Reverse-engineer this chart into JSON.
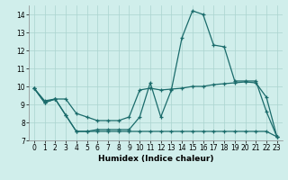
{
  "xlabel": "Humidex (Indice chaleur)",
  "background_color": "#d0eeeb",
  "grid_color": "#aad4cf",
  "line_color": "#1a6b6b",
  "x_values": [
    0,
    1,
    2,
    3,
    4,
    5,
    6,
    7,
    8,
    9,
    10,
    11,
    12,
    13,
    14,
    15,
    16,
    17,
    18,
    19,
    20,
    21,
    22,
    23
  ],
  "line_max": [
    9.9,
    9.1,
    9.3,
    8.4,
    7.5,
    7.5,
    7.6,
    7.6,
    7.6,
    7.6,
    8.3,
    10.2,
    8.3,
    9.8,
    12.7,
    14.2,
    14.0,
    12.3,
    12.2,
    10.3,
    10.3,
    10.3,
    8.6,
    7.2
  ],
  "line_mean": [
    9.9,
    9.2,
    9.3,
    9.3,
    8.5,
    8.3,
    8.1,
    8.1,
    8.1,
    8.3,
    9.8,
    9.9,
    9.8,
    9.85,
    9.9,
    10.0,
    10.0,
    10.1,
    10.15,
    10.2,
    10.25,
    10.2,
    9.4,
    7.2
  ],
  "line_min": [
    9.9,
    9.1,
    9.3,
    8.4,
    7.5,
    7.5,
    7.5,
    7.5,
    7.5,
    7.5,
    7.5,
    7.5,
    7.5,
    7.5,
    7.5,
    7.5,
    7.5,
    7.5,
    7.5,
    7.5,
    7.5,
    7.5,
    7.5,
    7.2
  ],
  "ylim": [
    7,
    14.5
  ],
  "xlim": [
    -0.5,
    23.5
  ],
  "yticks": [
    7,
    8,
    9,
    10,
    11,
    12,
    13,
    14
  ],
  "xticks": [
    0,
    1,
    2,
    3,
    4,
    5,
    6,
    7,
    8,
    9,
    10,
    11,
    12,
    13,
    14,
    15,
    16,
    17,
    18,
    19,
    20,
    21,
    22,
    23
  ]
}
